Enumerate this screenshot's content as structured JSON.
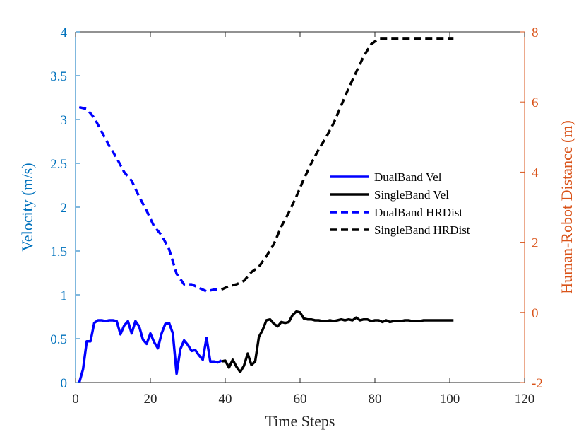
{
  "chart_data": {
    "type": "line",
    "xlabel": "Time Steps",
    "ylabel_left": "Velocity (m/s)",
    "ylabel_right": "Human-Robot Distance (m)",
    "xlim": [
      0,
      120
    ],
    "ylim_left": [
      0,
      4
    ],
    "ylim_right": [
      -2,
      8
    ],
    "x_ticks": [
      0,
      20,
      40,
      60,
      80,
      100,
      120
    ],
    "y_ticks_left": [
      0,
      0.5,
      1,
      1.5,
      2,
      2.5,
      3,
      3.5,
      4
    ],
    "y_tick_labels_left": [
      "0",
      "0.5",
      "1",
      "1.5",
      "2",
      "2.5",
      "3",
      "3.5",
      "4"
    ],
    "y_ticks_right": [
      -2,
      0,
      2,
      4,
      6,
      8
    ],
    "grid": false,
    "legend_position": "center-right",
    "colors": {
      "left_axis": "#0072BD",
      "right_axis": "#D95319",
      "dualband": "#0000FF",
      "singleband": "#000000"
    },
    "series": [
      {
        "name": "DualBand Vel",
        "axis": "left",
        "style": "solid",
        "color": "#0000FF",
        "x": [
          1,
          2,
          3,
          4,
          5,
          6,
          7,
          8,
          9,
          10,
          11,
          12,
          13,
          14,
          15,
          16,
          17,
          18,
          19,
          20,
          21,
          22,
          23,
          24,
          25,
          26,
          27,
          28,
          29,
          30,
          31,
          32,
          33,
          34,
          35,
          36,
          37,
          38,
          39
        ],
        "y": [
          0.0,
          0.15,
          0.47,
          0.47,
          0.68,
          0.71,
          0.71,
          0.7,
          0.71,
          0.71,
          0.7,
          0.55,
          0.65,
          0.7,
          0.56,
          0.7,
          0.64,
          0.49,
          0.44,
          0.56,
          0.46,
          0.39,
          0.56,
          0.67,
          0.68,
          0.56,
          0.1,
          0.38,
          0.48,
          0.43,
          0.36,
          0.37,
          0.31,
          0.26,
          0.51,
          0.24,
          0.24,
          0.23,
          0.25
        ]
      },
      {
        "name": "SingleBand Vel",
        "axis": "left",
        "style": "solid",
        "color": "#000000",
        "x": [
          39,
          40,
          41,
          42,
          43,
          44,
          45,
          46,
          47,
          48,
          49,
          50,
          51,
          52,
          53,
          54,
          55,
          56,
          57,
          58,
          59,
          60,
          61,
          62,
          63,
          64,
          65,
          66,
          67,
          68,
          69,
          70,
          71,
          72,
          73,
          74,
          75,
          76,
          77,
          78,
          79,
          80,
          81,
          82,
          83,
          84,
          85,
          86,
          87,
          88,
          89,
          90,
          91,
          92,
          93,
          94,
          95,
          96,
          97,
          98,
          99,
          100,
          101
        ],
        "y": [
          0.24,
          0.25,
          0.17,
          0.26,
          0.18,
          0.12,
          0.19,
          0.33,
          0.2,
          0.24,
          0.52,
          0.6,
          0.71,
          0.72,
          0.67,
          0.64,
          0.69,
          0.68,
          0.69,
          0.77,
          0.81,
          0.8,
          0.73,
          0.72,
          0.72,
          0.71,
          0.71,
          0.7,
          0.7,
          0.71,
          0.7,
          0.71,
          0.72,
          0.71,
          0.72,
          0.71,
          0.74,
          0.71,
          0.72,
          0.72,
          0.7,
          0.71,
          0.71,
          0.69,
          0.71,
          0.69,
          0.7,
          0.7,
          0.7,
          0.71,
          0.71,
          0.7,
          0.7,
          0.7,
          0.71,
          0.71,
          0.71,
          0.71,
          0.71,
          0.71,
          0.71,
          0.71,
          0.71
        ]
      },
      {
        "name": "DualBand HRDist",
        "axis": "right",
        "style": "dashed",
        "color": "#0000FF",
        "x": [
          1,
          3,
          5,
          7,
          9,
          11,
          13,
          15,
          17,
          19,
          21,
          23,
          25,
          27,
          29,
          31,
          33,
          35,
          37,
          39
        ],
        "y": [
          5.85,
          5.8,
          5.55,
          5.15,
          4.75,
          4.4,
          4.0,
          3.75,
          3.3,
          2.9,
          2.45,
          2.2,
          1.8,
          1.1,
          0.8,
          0.8,
          0.7,
          0.6,
          0.65,
          0.65
        ]
      },
      {
        "name": "SingleBand HRDist",
        "axis": "right",
        "style": "dashed",
        "color": "#000000",
        "x": [
          39,
          41,
          43,
          45,
          47,
          49,
          51,
          53,
          55,
          57,
          59,
          61,
          63,
          65,
          67,
          69,
          71,
          73,
          75,
          77,
          79,
          81,
          83,
          85,
          87,
          89,
          91,
          93,
          95,
          97,
          99,
          101
        ],
        "y": [
          0.65,
          0.75,
          0.8,
          0.9,
          1.15,
          1.3,
          1.6,
          1.95,
          2.45,
          2.85,
          3.3,
          3.8,
          4.25,
          4.65,
          5.0,
          5.4,
          5.9,
          6.4,
          6.85,
          7.3,
          7.65,
          7.8,
          7.8,
          7.8,
          7.8,
          7.8,
          7.8,
          7.8,
          7.8,
          7.8,
          7.8,
          7.8
        ]
      }
    ]
  }
}
